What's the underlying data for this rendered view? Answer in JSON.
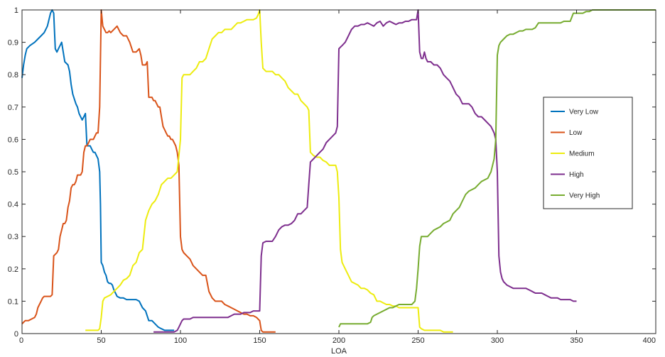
{
  "chart_data": {
    "type": "line",
    "xlabel": "LOA",
    "ylabel": "",
    "title": "",
    "xlim": [
      0,
      400
    ],
    "ylim": [
      0,
      1
    ],
    "x_ticks": [
      0,
      50,
      100,
      150,
      200,
      250,
      300,
      350,
      400
    ],
    "x_tick_labels": [
      "0",
      "50",
      "100",
      "150",
      "200",
      "250",
      "300",
      "350",
      "400"
    ],
    "y_ticks": [
      0,
      0.1,
      0.2,
      0.3,
      0.4,
      0.5,
      0.6,
      0.7,
      0.8,
      0.9,
      1
    ],
    "y_tick_labels": [
      "0",
      "0.1",
      "0.2",
      "0.3",
      "0.4",
      "0.5",
      "0.6",
      "0.7",
      "0.8",
      "0.9",
      "1"
    ],
    "grid": false,
    "legend_position": "right",
    "series": [
      {
        "name": "Very Low",
        "color": "#0072BD",
        "x": [
          0,
          1,
          2,
          3,
          5,
          8,
          10,
          12,
          14,
          16,
          18,
          19,
          20,
          21,
          22,
          23,
          24,
          25,
          27,
          29,
          30,
          31,
          32,
          34,
          35,
          36,
          37,
          38,
          39,
          40,
          41,
          42,
          43,
          44,
          45,
          46,
          47,
          48,
          49,
          49.5,
          50,
          51,
          52,
          53,
          54,
          55,
          56,
          57,
          58,
          59,
          60,
          62,
          64,
          66,
          68,
          70,
          72,
          74,
          76,
          78,
          80,
          82,
          84,
          86,
          88,
          90,
          92,
          94,
          96
        ],
        "y": [
          0.79,
          0.83,
          0.86,
          0.88,
          0.89,
          0.9,
          0.91,
          0.92,
          0.93,
          0.95,
          0.99,
          1.0,
          0.99,
          0.88,
          0.87,
          0.88,
          0.89,
          0.9,
          0.84,
          0.83,
          0.81,
          0.77,
          0.74,
          0.71,
          0.7,
          0.68,
          0.67,
          0.66,
          0.67,
          0.68,
          0.58,
          0.58,
          0.58,
          0.57,
          0.56,
          0.56,
          0.55,
          0.54,
          0.5,
          0.4,
          0.22,
          0.21,
          0.19,
          0.18,
          0.16,
          0.155,
          0.155,
          0.15,
          0.135,
          0.125,
          0.115,
          0.11,
          0.11,
          0.105,
          0.105,
          0.105,
          0.105,
          0.1,
          0.08,
          0.07,
          0.04,
          0.04,
          0.03,
          0.02,
          0.015,
          0.01,
          0.01,
          0.01,
          0.01
        ]
      },
      {
        "name": "Low",
        "color": "#D95319",
        "x": [
          0,
          1,
          2,
          4,
          6,
          8,
          9,
          10,
          11,
          12,
          13,
          14,
          16,
          18,
          19,
          20,
          21,
          22,
          23,
          24,
          25,
          26,
          27,
          28,
          29,
          30,
          31,
          32,
          33,
          34,
          35,
          36,
          37,
          38,
          39,
          40,
          41,
          42,
          43,
          44,
          45,
          46,
          47,
          48,
          49,
          50,
          51,
          52,
          53,
          54,
          55,
          56,
          58,
          60,
          62,
          64,
          66,
          68,
          70,
          72,
          74,
          75,
          76,
          77,
          78,
          79,
          80,
          81,
          82,
          83,
          84,
          85,
          86,
          87,
          88,
          89,
          90,
          91,
          92,
          93,
          94,
          95,
          96,
          97,
          98,
          99,
          100,
          101,
          102,
          104,
          106,
          108,
          110,
          112,
          114,
          116,
          118,
          120,
          122,
          124,
          126,
          128,
          130,
          132,
          134,
          136,
          138,
          140,
          142,
          144,
          146,
          148,
          150,
          151,
          152,
          154,
          156,
          158,
          160
        ],
        "y": [
          0.03,
          0.035,
          0.04,
          0.04,
          0.045,
          0.05,
          0.06,
          0.08,
          0.09,
          0.1,
          0.11,
          0.115,
          0.115,
          0.115,
          0.12,
          0.24,
          0.245,
          0.25,
          0.26,
          0.3,
          0.32,
          0.34,
          0.34,
          0.35,
          0.39,
          0.41,
          0.45,
          0.46,
          0.46,
          0.47,
          0.49,
          0.49,
          0.49,
          0.5,
          0.56,
          0.58,
          0.58,
          0.59,
          0.6,
          0.6,
          0.6,
          0.61,
          0.62,
          0.62,
          0.7,
          1.0,
          0.95,
          0.94,
          0.93,
          0.93,
          0.935,
          0.93,
          0.94,
          0.95,
          0.93,
          0.92,
          0.92,
          0.9,
          0.87,
          0.87,
          0.88,
          0.86,
          0.83,
          0.83,
          0.83,
          0.84,
          0.73,
          0.73,
          0.73,
          0.72,
          0.72,
          0.71,
          0.7,
          0.7,
          0.67,
          0.64,
          0.63,
          0.62,
          0.61,
          0.61,
          0.6,
          0.6,
          0.59,
          0.58,
          0.56,
          0.52,
          0.3,
          0.26,
          0.25,
          0.24,
          0.23,
          0.21,
          0.2,
          0.19,
          0.18,
          0.18,
          0.13,
          0.11,
          0.1,
          0.1,
          0.1,
          0.09,
          0.085,
          0.08,
          0.075,
          0.07,
          0.065,
          0.06,
          0.06,
          0.055,
          0.055,
          0.05,
          0.04,
          0.01,
          0.005,
          0.005,
          0.005,
          0.005,
          0.005
        ]
      },
      {
        "name": "Medium",
        "color": "#EDEC0F",
        "x": [
          40,
          45,
          48,
          49,
          50,
          51,
          52,
          54,
          56,
          58,
          60,
          62,
          64,
          66,
          68,
          70,
          72,
          74,
          76,
          78,
          80,
          82,
          84,
          86,
          88,
          90,
          92,
          94,
          96,
          98,
          99,
          100,
          101,
          102,
          104,
          106,
          108,
          110,
          112,
          114,
          116,
          118,
          120,
          122,
          124,
          126,
          128,
          130,
          132,
          134,
          136,
          138,
          140,
          142,
          144,
          146,
          148,
          149,
          150,
          151,
          152,
          154,
          156,
          158,
          160,
          162,
          164,
          166,
          168,
          170,
          172,
          174,
          176,
          178,
          180,
          181,
          182,
          184,
          186,
          188,
          190,
          192,
          194,
          196,
          198,
          199,
          200,
          201,
          202,
          204,
          206,
          208,
          210,
          212,
          214,
          216,
          218,
          220,
          222,
          224,
          226,
          228,
          230,
          232,
          234,
          236,
          238,
          240,
          242,
          244,
          246,
          248,
          250,
          251,
          252,
          254,
          256,
          258,
          260,
          262,
          264,
          266,
          268,
          270,
          272
        ],
        "y": [
          0.01,
          0.01,
          0.01,
          0.015,
          0.05,
          0.1,
          0.11,
          0.115,
          0.12,
          0.13,
          0.14,
          0.15,
          0.165,
          0.17,
          0.18,
          0.21,
          0.22,
          0.25,
          0.26,
          0.35,
          0.38,
          0.4,
          0.41,
          0.43,
          0.46,
          0.47,
          0.48,
          0.48,
          0.49,
          0.5,
          0.55,
          0.6,
          0.79,
          0.8,
          0.8,
          0.8,
          0.81,
          0.82,
          0.84,
          0.84,
          0.85,
          0.88,
          0.91,
          0.92,
          0.93,
          0.93,
          0.94,
          0.94,
          0.94,
          0.95,
          0.96,
          0.96,
          0.965,
          0.97,
          0.97,
          0.97,
          0.975,
          0.985,
          1.0,
          0.9,
          0.82,
          0.81,
          0.81,
          0.81,
          0.8,
          0.8,
          0.79,
          0.78,
          0.76,
          0.75,
          0.74,
          0.74,
          0.72,
          0.71,
          0.7,
          0.69,
          0.56,
          0.55,
          0.545,
          0.545,
          0.535,
          0.53,
          0.52,
          0.52,
          0.52,
          0.5,
          0.42,
          0.26,
          0.22,
          0.2,
          0.18,
          0.16,
          0.155,
          0.15,
          0.14,
          0.14,
          0.135,
          0.125,
          0.12,
          0.1,
          0.1,
          0.095,
          0.09,
          0.09,
          0.085,
          0.085,
          0.08,
          0.08,
          0.08,
          0.08,
          0.08,
          0.08,
          0.08,
          0.02,
          0.015,
          0.01,
          0.01,
          0.01,
          0.01,
          0.01,
          0.01,
          0.005,
          0.005,
          0.005,
          0.005
        ]
      },
      {
        "name": "High",
        "color": "#7E2F8E",
        "x": [
          83,
          86,
          90,
          94,
          96,
          98,
          99,
          100,
          101,
          102,
          104,
          106,
          108,
          110,
          112,
          114,
          116,
          118,
          120,
          122,
          124,
          126,
          128,
          130,
          132,
          134,
          136,
          138,
          140,
          142,
          144,
          146,
          148,
          149,
          150,
          151,
          152,
          154,
          156,
          158,
          160,
          162,
          164,
          166,
          168,
          170,
          172,
          174,
          176,
          178,
          180,
          181,
          182,
          184,
          186,
          188,
          190,
          192,
          194,
          196,
          198,
          199,
          200,
          201,
          202,
          204,
          206,
          208,
          210,
          212,
          214,
          216,
          218,
          220,
          222,
          224,
          226,
          228,
          230,
          232,
          234,
          236,
          238,
          240,
          242,
          244,
          246,
          248,
          249,
          250,
          251,
          252,
          253,
          254,
          255,
          256,
          257,
          258,
          260,
          262,
          264,
          266,
          268,
          270,
          272,
          274,
          276,
          278,
          280,
          282,
          284,
          286,
          288,
          290,
          292,
          294,
          296,
          298,
          299,
          300,
          301,
          302,
          303,
          304,
          306,
          308,
          310,
          312,
          314,
          316,
          318,
          320,
          322,
          324,
          326,
          328,
          330,
          332,
          334,
          336,
          338,
          340,
          342,
          344,
          346,
          348,
          350
        ],
        "y": [
          0.005,
          0.005,
          0.005,
          0.005,
          0.005,
          0.01,
          0.02,
          0.03,
          0.04,
          0.045,
          0.045,
          0.045,
          0.05,
          0.05,
          0.05,
          0.05,
          0.05,
          0.05,
          0.05,
          0.05,
          0.05,
          0.05,
          0.05,
          0.05,
          0.055,
          0.06,
          0.06,
          0.06,
          0.065,
          0.065,
          0.065,
          0.07,
          0.07,
          0.07,
          0.07,
          0.24,
          0.28,
          0.285,
          0.285,
          0.285,
          0.3,
          0.32,
          0.33,
          0.335,
          0.335,
          0.34,
          0.35,
          0.37,
          0.37,
          0.38,
          0.39,
          0.46,
          0.53,
          0.54,
          0.55,
          0.56,
          0.57,
          0.59,
          0.6,
          0.61,
          0.62,
          0.64,
          0.88,
          0.885,
          0.89,
          0.9,
          0.92,
          0.94,
          0.95,
          0.95,
          0.955,
          0.955,
          0.96,
          0.955,
          0.95,
          0.96,
          0.965,
          0.95,
          0.96,
          0.965,
          0.96,
          0.955,
          0.96,
          0.96,
          0.965,
          0.965,
          0.97,
          0.97,
          0.97,
          1.0,
          0.87,
          0.85,
          0.85,
          0.87,
          0.85,
          0.84,
          0.84,
          0.84,
          0.83,
          0.83,
          0.82,
          0.8,
          0.79,
          0.78,
          0.76,
          0.74,
          0.73,
          0.71,
          0.71,
          0.71,
          0.7,
          0.68,
          0.67,
          0.67,
          0.66,
          0.65,
          0.64,
          0.62,
          0.6,
          0.5,
          0.24,
          0.19,
          0.17,
          0.16,
          0.15,
          0.145,
          0.14,
          0.14,
          0.14,
          0.14,
          0.14,
          0.135,
          0.13,
          0.125,
          0.125,
          0.125,
          0.12,
          0.115,
          0.11,
          0.11,
          0.11,
          0.105,
          0.105,
          0.105,
          0.105,
          0.1,
          0.1
        ]
      },
      {
        "name": "Very High",
        "color": "#77AC30",
        "x": [
          200,
          201,
          203,
          206,
          209,
          212,
          215,
          218,
          220,
          221,
          222,
          224,
          226,
          228,
          230,
          232,
          234,
          236,
          238,
          240,
          242,
          244,
          246,
          248,
          249,
          250,
          251,
          252,
          254,
          256,
          258,
          260,
          262,
          264,
          266,
          268,
          270,
          272,
          274,
          276,
          278,
          280,
          282,
          284,
          286,
          288,
          290,
          292,
          294,
          296,
          298,
          299,
          300,
          301,
          302,
          304,
          306,
          308,
          310,
          312,
          314,
          316,
          318,
          320,
          322,
          324,
          326,
          328,
          330,
          332,
          334,
          336,
          338,
          340,
          342,
          344,
          346,
          348,
          350,
          352,
          354,
          356,
          358,
          360,
          365,
          370,
          380,
          390,
          400
        ],
        "y": [
          0.02,
          0.03,
          0.03,
          0.03,
          0.03,
          0.03,
          0.03,
          0.03,
          0.035,
          0.05,
          0.055,
          0.06,
          0.065,
          0.07,
          0.075,
          0.08,
          0.08,
          0.085,
          0.09,
          0.09,
          0.09,
          0.09,
          0.09,
          0.1,
          0.14,
          0.2,
          0.27,
          0.3,
          0.3,
          0.3,
          0.31,
          0.32,
          0.325,
          0.33,
          0.34,
          0.345,
          0.35,
          0.37,
          0.38,
          0.39,
          0.41,
          0.43,
          0.44,
          0.445,
          0.45,
          0.46,
          0.47,
          0.475,
          0.48,
          0.5,
          0.54,
          0.6,
          0.86,
          0.89,
          0.9,
          0.91,
          0.92,
          0.925,
          0.925,
          0.93,
          0.935,
          0.935,
          0.94,
          0.94,
          0.94,
          0.945,
          0.96,
          0.96,
          0.96,
          0.96,
          0.96,
          0.96,
          0.96,
          0.96,
          0.965,
          0.965,
          0.965,
          0.99,
          0.99,
          0.99,
          0.99,
          0.995,
          0.995,
          1.0,
          1.0,
          1.0,
          1.0,
          1.0,
          1.0
        ]
      }
    ]
  }
}
